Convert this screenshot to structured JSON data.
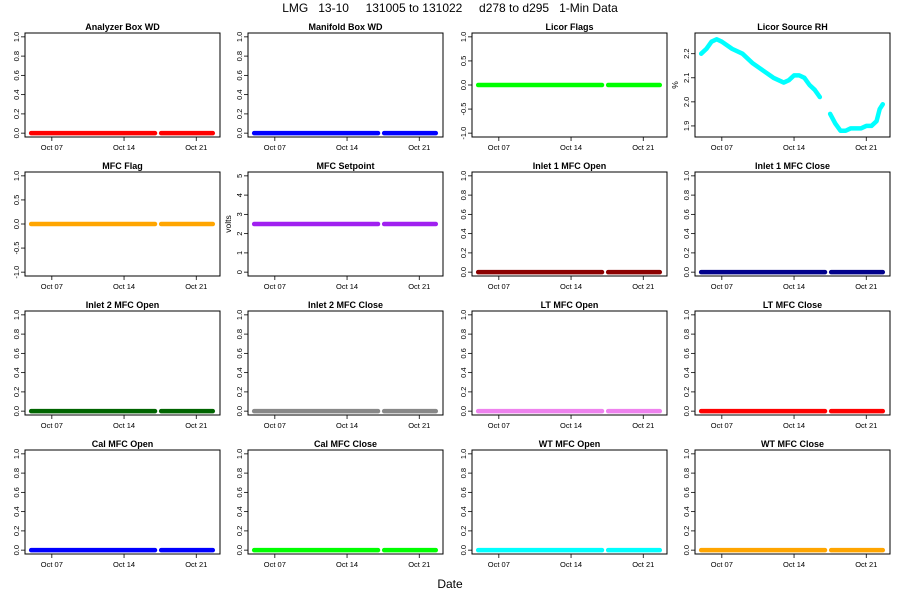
{
  "title": "LMG   13-10     131005 to 131022     d278 to d295   1-Min Data",
  "xlabel": "Date",
  "chart_data": [
    {
      "type": "line",
      "title": "Analyzer Box WD",
      "ylabel": "",
      "color": "#ff0000",
      "ylim": [
        0,
        1
      ],
      "yticks": [
        "0.0",
        "0.2",
        "0.4",
        "0.6",
        "0.8",
        "1.0"
      ],
      "xticks": [
        "Oct 07",
        "Oct 14",
        "Oct 21"
      ],
      "series": [
        {
          "name": "Analyzer Box WD",
          "x": [
            278,
            287.5,
            295.6
          ],
          "values": [
            0,
            0,
            0
          ]
        }
      ],
      "segments": [
        [
          278,
          290
        ],
        [
          290.6,
          295.6
        ]
      ],
      "const": 0
    },
    {
      "type": "line",
      "title": "Manifold Box WD",
      "ylabel": "",
      "color": "#0000ff",
      "ylim": [
        0,
        1
      ],
      "yticks": [
        "0.0",
        "0.2",
        "0.4",
        "0.6",
        "0.8",
        "1.0"
      ],
      "xticks": [
        "Oct 07",
        "Oct 14",
        "Oct 21"
      ],
      "series": [
        {
          "name": "Manifold Box WD",
          "x": [
            278,
            287.5,
            295.6
          ],
          "values": [
            0,
            0,
            0
          ]
        }
      ],
      "segments": [
        [
          278,
          290
        ],
        [
          290.6,
          295.6
        ]
      ],
      "const": 0
    },
    {
      "type": "line",
      "title": "Licor Flags",
      "ylabel": "",
      "color": "#00ff00",
      "ylim": [
        -1,
        1
      ],
      "yticks": [
        "-1.0",
        "-0.5",
        "0.0",
        "0.5",
        "1.0"
      ],
      "xticks": [
        "Oct 07",
        "Oct 14",
        "Oct 21"
      ],
      "series": [
        {
          "name": "Licor Flags",
          "x": [
            278,
            287.5,
            295.6
          ],
          "values": [
            0,
            0,
            0
          ]
        }
      ],
      "segments": [
        [
          278,
          290
        ],
        [
          290.6,
          295.6
        ]
      ],
      "const": 0
    },
    {
      "type": "line",
      "title": "Licor Source RH",
      "ylabel": "%",
      "color": "#00ffff",
      "ylim": [
        1.87,
        2.27
      ],
      "yticks": [
        "1.9",
        "2.0",
        "2.1",
        "2.2"
      ],
      "xticks": [
        "Oct 07",
        "Oct 14",
        "Oct 21"
      ],
      "series": [
        {
          "name": "Licor Source RH",
          "x": [
            278,
            278.5,
            279,
            279.5,
            280,
            281,
            282,
            283,
            284,
            285,
            286,
            286.5,
            287,
            287.5,
            288,
            288.5,
            289,
            289.5,
            290.5,
            291,
            291.5,
            292,
            292.5,
            293,
            293.5,
            294,
            294.5,
            295,
            295.3,
            295.6
          ],
          "values": [
            2.2,
            2.22,
            2.25,
            2.26,
            2.25,
            2.22,
            2.2,
            2.16,
            2.13,
            2.1,
            2.08,
            2.09,
            2.11,
            2.11,
            2.1,
            2.07,
            2.05,
            2.02,
            1.95,
            1.91,
            1.88,
            1.88,
            1.89,
            1.89,
            1.89,
            1.9,
            1.9,
            1.92,
            1.97,
            1.99
          ]
        }
      ],
      "segments": [
        [
          278,
          289.5
        ],
        [
          290.5,
          295.6
        ]
      ]
    },
    {
      "type": "line",
      "title": "MFC Flag",
      "ylabel": "",
      "color": "#ffa500",
      "ylim": [
        -1,
        1
      ],
      "yticks": [
        "-1.0",
        "-0.5",
        "0.0",
        "0.5",
        "1.0"
      ],
      "xticks": [
        "Oct 07",
        "Oct 14",
        "Oct 21"
      ],
      "series": [
        {
          "name": "MFC Flag",
          "x": [
            278,
            287.5,
            295.6
          ],
          "values": [
            0,
            0,
            0
          ]
        }
      ],
      "segments": [
        [
          278,
          290
        ],
        [
          290.6,
          295.6
        ]
      ],
      "const": 0
    },
    {
      "type": "line",
      "title": "MFC Setpoint",
      "ylabel": "volts",
      "color": "#a020f0",
      "ylim": [
        0,
        5
      ],
      "yticks": [
        "0",
        "1",
        "2",
        "3",
        "4",
        "5"
      ],
      "xticks": [
        "Oct 07",
        "Oct 14",
        "Oct 21"
      ],
      "series": [
        {
          "name": "MFC Setpoint",
          "x": [
            278,
            287.5,
            295.6
          ],
          "values": [
            2.5,
            2.5,
            2.5
          ]
        }
      ],
      "segments": [
        [
          278,
          290
        ],
        [
          290.6,
          295.6
        ]
      ],
      "const": 2.5
    },
    {
      "type": "line",
      "title": "Inlet 1 MFC Open",
      "ylabel": "",
      "color": "#8b0000",
      "ylim": [
        0,
        1
      ],
      "yticks": [
        "0.0",
        "0.2",
        "0.4",
        "0.6",
        "0.8",
        "1.0"
      ],
      "xticks": [
        "Oct 07",
        "Oct 14",
        "Oct 21"
      ],
      "series": [
        {
          "name": "Inlet 1 MFC Open",
          "x": [
            278,
            287.5,
            295.6
          ],
          "values": [
            0,
            0,
            0
          ]
        }
      ],
      "segments": [
        [
          278,
          290
        ],
        [
          290.6,
          295.6
        ]
      ],
      "const": 0
    },
    {
      "type": "line",
      "title": "Inlet 1 MFC Close",
      "ylabel": "",
      "color": "#00008b",
      "ylim": [
        0,
        1
      ],
      "yticks": [
        "0.0",
        "0.2",
        "0.4",
        "0.6",
        "0.8",
        "1.0"
      ],
      "xticks": [
        "Oct 07",
        "Oct 14",
        "Oct 21"
      ],
      "series": [
        {
          "name": "Inlet 1 MFC Close",
          "x": [
            278,
            287.5,
            295.6
          ],
          "values": [
            0,
            0,
            0
          ]
        }
      ],
      "segments": [
        [
          278,
          290
        ],
        [
          290.6,
          295.6
        ]
      ],
      "const": 0
    },
    {
      "type": "line",
      "title": "Inlet 2 MFC Open",
      "ylabel": "",
      "color": "#006400",
      "ylim": [
        0,
        1
      ],
      "yticks": [
        "0.0",
        "0.2",
        "0.4",
        "0.6",
        "0.8",
        "1.0"
      ],
      "xticks": [
        "Oct 07",
        "Oct 14",
        "Oct 21"
      ],
      "series": [
        {
          "name": "Inlet 2 MFC Open",
          "x": [
            278,
            287.5,
            295.6
          ],
          "values": [
            0,
            0,
            0
          ]
        }
      ],
      "segments": [
        [
          278,
          290
        ],
        [
          290.6,
          295.6
        ]
      ],
      "const": 0
    },
    {
      "type": "line",
      "title": "Inlet 2 MFC Close",
      "ylabel": "",
      "color": "#888888",
      "ylim": [
        0,
        1
      ],
      "yticks": [
        "0.0",
        "0.2",
        "0.4",
        "0.6",
        "0.8",
        "1.0"
      ],
      "xticks": [
        "Oct 07",
        "Oct 14",
        "Oct 21"
      ],
      "series": [
        {
          "name": "Inlet 2 MFC Close",
          "x": [
            278,
            287.5,
            295.6
          ],
          "values": [
            0,
            0,
            0
          ]
        }
      ],
      "segments": [
        [
          278,
          290
        ],
        [
          290.6,
          295.6
        ]
      ],
      "const": 0
    },
    {
      "type": "line",
      "title": "LT MFC Open",
      "ylabel": "",
      "color": "#ee82ee",
      "ylim": [
        0,
        1
      ],
      "yticks": [
        "0.0",
        "0.2",
        "0.4",
        "0.6",
        "0.8",
        "1.0"
      ],
      "xticks": [
        "Oct 07",
        "Oct 14",
        "Oct 21"
      ],
      "series": [
        {
          "name": "LT MFC Open",
          "x": [
            278,
            287.5,
            295.6
          ],
          "values": [
            0,
            0,
            0
          ]
        }
      ],
      "segments": [
        [
          278,
          290
        ],
        [
          290.6,
          295.6
        ]
      ],
      "const": 0
    },
    {
      "type": "line",
      "title": "LT MFC Close",
      "ylabel": "",
      "color": "#ff0000",
      "ylim": [
        0,
        1
      ],
      "yticks": [
        "0.0",
        "0.2",
        "0.4",
        "0.6",
        "0.8",
        "1.0"
      ],
      "xticks": [
        "Oct 07",
        "Oct 14",
        "Oct 21"
      ],
      "series": [
        {
          "name": "LT MFC Close",
          "x": [
            278,
            287.5,
            295.6
          ],
          "values": [
            0,
            0,
            0
          ]
        }
      ],
      "segments": [
        [
          278,
          290
        ],
        [
          290.6,
          295.6
        ]
      ],
      "const": 0
    },
    {
      "type": "line",
      "title": "Cal MFC Open",
      "ylabel": "",
      "color": "#0000ff",
      "ylim": [
        0,
        1
      ],
      "yticks": [
        "0.0",
        "0.2",
        "0.4",
        "0.6",
        "0.8",
        "1.0"
      ],
      "xticks": [
        "Oct 07",
        "Oct 14",
        "Oct 21"
      ],
      "series": [
        {
          "name": "Cal MFC Open",
          "x": [
            278,
            287.5,
            295.6
          ],
          "values": [
            0,
            0,
            0
          ]
        }
      ],
      "segments": [
        [
          278,
          290
        ],
        [
          290.6,
          295.6
        ]
      ],
      "const": 0
    },
    {
      "type": "line",
      "title": "Cal MFC Close",
      "ylabel": "",
      "color": "#00ff00",
      "ylim": [
        0,
        1
      ],
      "yticks": [
        "0.0",
        "0.2",
        "0.4",
        "0.6",
        "0.8",
        "1.0"
      ],
      "xticks": [
        "Oct 07",
        "Oct 14",
        "Oct 21"
      ],
      "series": [
        {
          "name": "Cal MFC Close",
          "x": [
            278,
            287.5,
            295.6
          ],
          "values": [
            0,
            0,
            0
          ]
        }
      ],
      "segments": [
        [
          278,
          290
        ],
        [
          290.6,
          295.6
        ]
      ],
      "const": 0
    },
    {
      "type": "line",
      "title": "WT MFC Open",
      "ylabel": "",
      "color": "#00ffff",
      "ylim": [
        0,
        1
      ],
      "yticks": [
        "0.0",
        "0.2",
        "0.4",
        "0.6",
        "0.8",
        "1.0"
      ],
      "xticks": [
        "Oct 07",
        "Oct 14",
        "Oct 21"
      ],
      "series": [
        {
          "name": "WT MFC Open",
          "x": [
            278,
            287.5,
            295.6
          ],
          "values": [
            0,
            0,
            0
          ]
        }
      ],
      "segments": [
        [
          278,
          290
        ],
        [
          290.6,
          295.6
        ]
      ],
      "const": 0
    },
    {
      "type": "line",
      "title": "WT MFC Close",
      "ylabel": "",
      "color": "#ffa500",
      "ylim": [
        0,
        1
      ],
      "yticks": [
        "0.0",
        "0.2",
        "0.4",
        "0.6",
        "0.8",
        "1.0"
      ],
      "xticks": [
        "Oct 07",
        "Oct 14",
        "Oct 21"
      ],
      "series": [
        {
          "name": "WT MFC Close",
          "x": [
            278,
            287.5,
            295.6
          ],
          "values": [
            0,
            0,
            0
          ]
        }
      ],
      "segments": [
        [
          278,
          290
        ],
        [
          290.6,
          295.6
        ]
      ],
      "const": 0
    }
  ]
}
